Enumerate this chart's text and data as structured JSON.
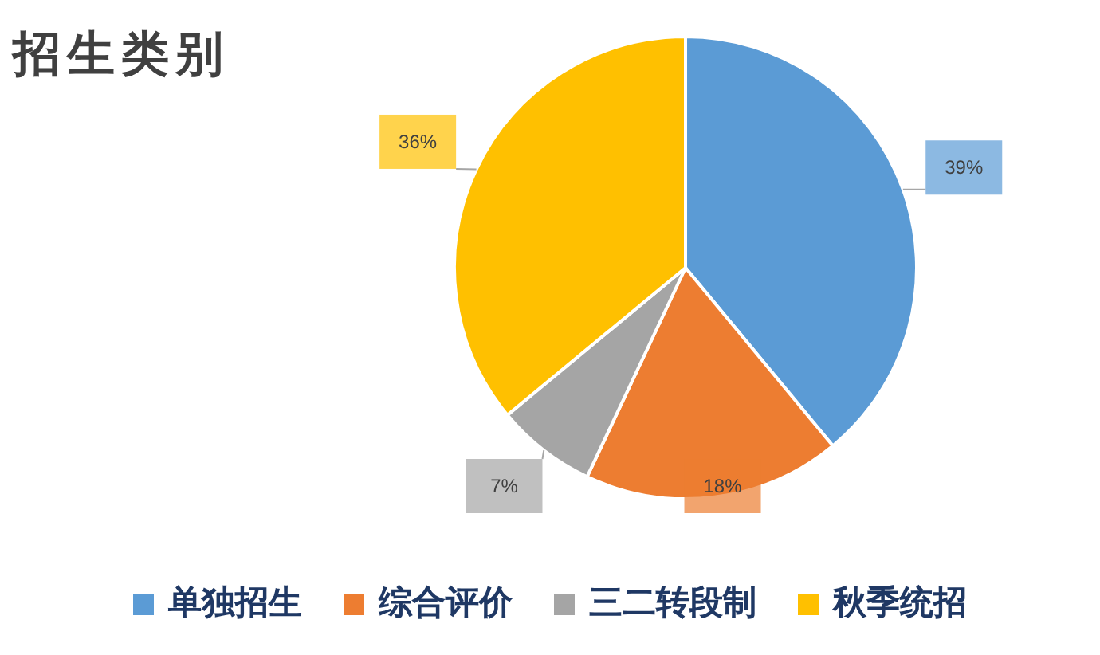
{
  "chart_data": {
    "type": "pie",
    "title": "招生类别",
    "categories": [
      "单独招生",
      "综合评价",
      "三二转段制",
      "秋季统招"
    ],
    "values": [
      39,
      18,
      7,
      36
    ],
    "value_labels": [
      "39%",
      "18%",
      "7%",
      "36%"
    ],
    "colors": [
      "#5b9bd5",
      "#ed7d31",
      "#a5a5a5",
      "#ffc000"
    ],
    "legend": "bottom"
  }
}
